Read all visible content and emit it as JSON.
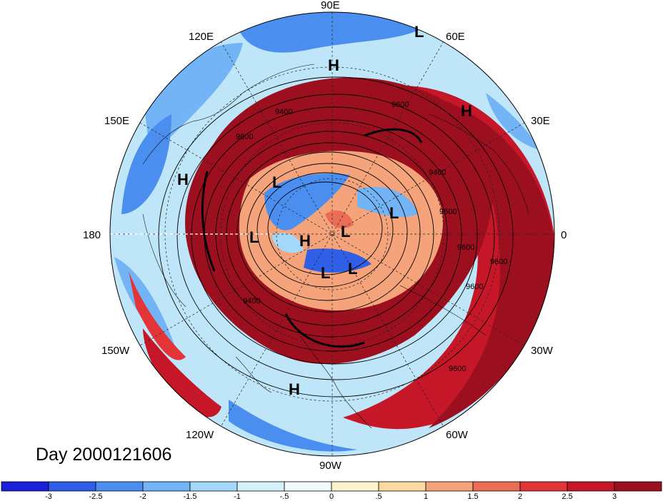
{
  "map": {
    "projection": "north polar stereographic",
    "date_label": "Day 2000121606",
    "longitude_labels": [
      "90E",
      "60E",
      "30E",
      "0",
      "30W",
      "60W",
      "90W",
      "120W",
      "150W",
      "180",
      "150E",
      "120E"
    ],
    "pressure_systems": [
      "L",
      "H",
      "H",
      "H",
      "L",
      "L",
      "L",
      "H",
      "L",
      "L",
      "L",
      "H"
    ],
    "contour_labels": [
      "9600",
      "9400",
      "9600",
      "9400",
      "9600",
      "9600",
      "9600",
      "9600",
      "9400",
      "9600"
    ]
  },
  "colorbar": {
    "labels": [
      "-3",
      "-2.5",
      "-2",
      "-1.5",
      "-1",
      "-.5",
      "0",
      ".5",
      "1",
      "1.5",
      "2",
      "2.5",
      "3"
    ],
    "colors": [
      "#1a1fd9",
      "#2f5fe6",
      "#4a8ff0",
      "#72b4f5",
      "#a3d8fa",
      "#d5f2fb",
      "#f2fbfb",
      "#fff3cd",
      "#fbd9a1",
      "#f4a37a",
      "#ec6d55",
      "#e33438",
      "#c51728",
      "#9b0f1f"
    ]
  }
}
